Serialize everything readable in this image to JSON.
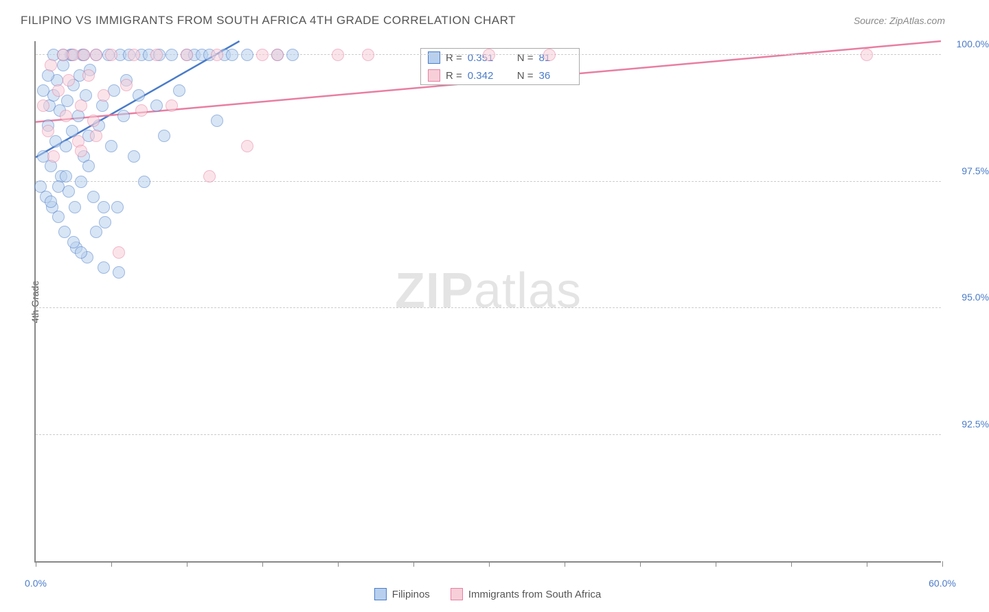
{
  "header": {
    "title": "FILIPINO VS IMMIGRANTS FROM SOUTH AFRICA 4TH GRADE CORRELATION CHART",
    "source": "Source: ZipAtlas.com"
  },
  "watermark": {
    "zip": "ZIP",
    "atlas": "atlas"
  },
  "axes": {
    "ylabel": "4th Grade",
    "xlim": [
      0,
      60
    ],
    "ylim": [
      90,
      100.3
    ],
    "xticks": [
      0,
      5,
      10,
      15,
      20,
      25,
      30,
      35,
      40,
      45,
      50,
      55,
      60
    ],
    "xtick_labels": {
      "0": "0.0%",
      "60": "60.0%"
    },
    "yticks": [
      92.5,
      95.0,
      97.5,
      100.0
    ],
    "ytick_labels": [
      "92.5%",
      "95.0%",
      "97.5%",
      "100.0%"
    ]
  },
  "colors": {
    "blue_fill": "#b8d0ee",
    "blue_stroke": "#4a7bc8",
    "pink_fill": "#f7cfd9",
    "pink_stroke": "#e87ea1",
    "grid": "#cccccc",
    "axis": "#888888",
    "text": "#555555",
    "value": "#4a7bc8"
  },
  "marker": {
    "radius": 9,
    "opacity": 0.55,
    "stroke_width": 1.5
  },
  "series": [
    {
      "name": "Filipinos",
      "color_fill": "#b8d0ee",
      "color_stroke": "#4a7bc8",
      "R": "0.351",
      "N": "81",
      "trend": {
        "x1": 0,
        "y1": 98.0,
        "x2": 13.5,
        "y2": 100.3
      },
      "points": [
        [
          0.3,
          97.4
        ],
        [
          0.5,
          98.0
        ],
        [
          0.7,
          97.2
        ],
        [
          0.8,
          98.6
        ],
        [
          0.9,
          99.0
        ],
        [
          1.0,
          97.8
        ],
        [
          1.1,
          97.0
        ],
        [
          1.2,
          99.2
        ],
        [
          1.3,
          98.3
        ],
        [
          1.4,
          99.5
        ],
        [
          1.5,
          96.8
        ],
        [
          1.6,
          98.9
        ],
        [
          1.7,
          97.6
        ],
        [
          1.8,
          99.8
        ],
        [
          1.9,
          96.5
        ],
        [
          2.0,
          98.2
        ],
        [
          2.1,
          99.1
        ],
        [
          2.2,
          97.3
        ],
        [
          2.3,
          100.0
        ],
        [
          2.4,
          98.5
        ],
        [
          2.5,
          99.4
        ],
        [
          2.6,
          97.0
        ],
        [
          2.7,
          96.2
        ],
        [
          2.8,
          98.8
        ],
        [
          2.9,
          99.6
        ],
        [
          3.0,
          97.5
        ],
        [
          3.1,
          100.0
        ],
        [
          3.2,
          98.0
        ],
        [
          3.3,
          99.2
        ],
        [
          3.4,
          96.0
        ],
        [
          3.5,
          98.4
        ],
        [
          3.6,
          99.7
        ],
        [
          3.8,
          97.2
        ],
        [
          4.0,
          100.0
        ],
        [
          4.2,
          98.6
        ],
        [
          4.4,
          99.0
        ],
        [
          4.5,
          95.8
        ],
        [
          4.6,
          96.7
        ],
        [
          4.8,
          100.0
        ],
        [
          5.0,
          98.2
        ],
        [
          5.2,
          99.3
        ],
        [
          5.4,
          97.0
        ],
        [
          5.5,
          95.7
        ],
        [
          5.6,
          100.0
        ],
        [
          5.8,
          98.8
        ],
        [
          6.0,
          99.5
        ],
        [
          6.2,
          100.0
        ],
        [
          6.5,
          98.0
        ],
        [
          6.8,
          99.2
        ],
        [
          7.0,
          100.0
        ],
        [
          7.2,
          97.5
        ],
        [
          7.5,
          100.0
        ],
        [
          8.0,
          99.0
        ],
        [
          8.2,
          100.0
        ],
        [
          8.5,
          98.4
        ],
        [
          9.0,
          100.0
        ],
        [
          9.5,
          99.3
        ],
        [
          10.0,
          100.0
        ],
        [
          10.5,
          100.0
        ],
        [
          11.0,
          100.0
        ],
        [
          11.5,
          100.0
        ],
        [
          12.0,
          98.7
        ],
        [
          12.5,
          100.0
        ],
        [
          13.0,
          100.0
        ],
        [
          14.0,
          100.0
        ],
        [
          16.0,
          100.0
        ],
        [
          17.0,
          100.0
        ],
        [
          1.0,
          97.1
        ],
        [
          1.5,
          97.4
        ],
        [
          2.0,
          97.6
        ],
        [
          2.5,
          96.3
        ],
        [
          3.0,
          96.1
        ],
        [
          3.5,
          97.8
        ],
        [
          4.0,
          96.5
        ],
        [
          4.5,
          97.0
        ],
        [
          0.5,
          99.3
        ],
        [
          0.8,
          99.6
        ],
        [
          1.2,
          100.0
        ],
        [
          1.8,
          100.0
        ],
        [
          2.4,
          100.0
        ],
        [
          3.2,
          100.0
        ]
      ]
    },
    {
      "name": "Immigrants from South Africa",
      "color_fill": "#f7cfd9",
      "color_stroke": "#e87ea1",
      "R": "0.342",
      "N": "36",
      "trend": {
        "x1": 0,
        "y1": 98.7,
        "x2": 60,
        "y2": 100.3
      },
      "points": [
        [
          0.5,
          99.0
        ],
        [
          0.8,
          98.5
        ],
        [
          1.0,
          99.8
        ],
        [
          1.2,
          98.0
        ],
        [
          1.5,
          99.3
        ],
        [
          1.8,
          100.0
        ],
        [
          2.0,
          98.8
        ],
        [
          2.2,
          99.5
        ],
        [
          2.5,
          100.0
        ],
        [
          2.8,
          98.3
        ],
        [
          3.0,
          99.0
        ],
        [
          3.2,
          100.0
        ],
        [
          3.5,
          99.6
        ],
        [
          3.8,
          98.7
        ],
        [
          4.0,
          100.0
        ],
        [
          4.5,
          99.2
        ],
        [
          5.0,
          100.0
        ],
        [
          5.5,
          96.1
        ],
        [
          6.0,
          99.4
        ],
        [
          6.5,
          100.0
        ],
        [
          7.0,
          98.9
        ],
        [
          8.0,
          100.0
        ],
        [
          9.0,
          99.0
        ],
        [
          10.0,
          100.0
        ],
        [
          11.5,
          97.6
        ],
        [
          12.0,
          100.0
        ],
        [
          14.0,
          98.2
        ],
        [
          15.0,
          100.0
        ],
        [
          16.0,
          100.0
        ],
        [
          20.0,
          100.0
        ],
        [
          22.0,
          100.0
        ],
        [
          30.0,
          100.0
        ],
        [
          34.0,
          100.0
        ],
        [
          55.0,
          100.0
        ],
        [
          3.0,
          98.1
        ],
        [
          4.0,
          98.4
        ]
      ]
    }
  ],
  "legend": {
    "items": [
      {
        "label": "Filipinos",
        "fill": "#b8d0ee",
        "stroke": "#4a7bc8"
      },
      {
        "label": "Immigrants from South Africa",
        "fill": "#f7cfd9",
        "stroke": "#e87ea1"
      }
    ]
  },
  "stats_labels": {
    "R": "R  =",
    "N": "N  ="
  }
}
